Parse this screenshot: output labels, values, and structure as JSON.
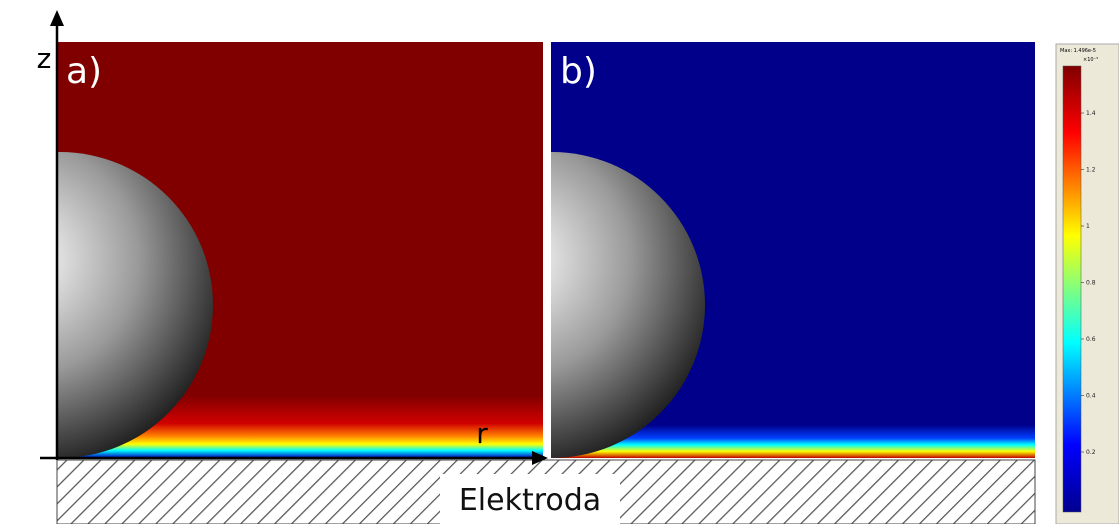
{
  "panels": [
    {
      "label": "a)"
    },
    {
      "label": "b)"
    }
  ],
  "axes": {
    "z": "z",
    "r": "r"
  },
  "electrode": "Elektroda",
  "colorbar": {
    "max_label": "Max: 1.496e-5",
    "exponent": "×10⁻⁵",
    "ticks": [
      1.4,
      1.2,
      1,
      0.8,
      0.6,
      0.4,
      0.2
    ]
  }
}
